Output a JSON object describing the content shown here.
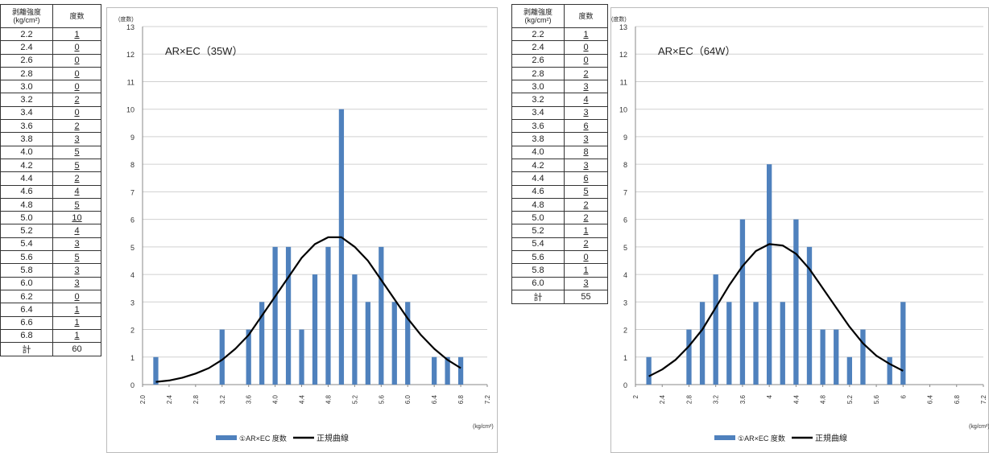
{
  "tables": [
    {
      "header_strength": "剥離強度\n(kg/cm²)",
      "header_freq": "度数",
      "rows": [
        [
          "2.2",
          "1"
        ],
        [
          "2.4",
          "0"
        ],
        [
          "2.6",
          "0"
        ],
        [
          "2.8",
          "0"
        ],
        [
          "3.0",
          "0"
        ],
        [
          "3.2",
          "2"
        ],
        [
          "3.4",
          "0"
        ],
        [
          "3.6",
          "2"
        ],
        [
          "3.8",
          "3"
        ],
        [
          "4.0",
          "5"
        ],
        [
          "4.2",
          "5"
        ],
        [
          "4.4",
          "2"
        ],
        [
          "4.6",
          "4"
        ],
        [
          "4.8",
          "5"
        ],
        [
          "5.0",
          "10"
        ],
        [
          "5.2",
          "4"
        ],
        [
          "5.4",
          "3"
        ],
        [
          "5.6",
          "5"
        ],
        [
          "5.8",
          "3"
        ],
        [
          "6.0",
          "3"
        ],
        [
          "6.2",
          "0"
        ],
        [
          "6.4",
          "1"
        ],
        [
          "6.6",
          "1"
        ],
        [
          "6.8",
          "1"
        ]
      ],
      "total_label": "計",
      "total_value": "60"
    },
    {
      "header_strength": "剥離強度\n(kg/cm²)",
      "header_freq": "度数",
      "rows": [
        [
          "2.2",
          "1"
        ],
        [
          "2.4",
          "0"
        ],
        [
          "2.6",
          "0"
        ],
        [
          "2.8",
          "2"
        ],
        [
          "3.0",
          "3"
        ],
        [
          "3.2",
          "4"
        ],
        [
          "3.4",
          "3"
        ],
        [
          "3.6",
          "6"
        ],
        [
          "3.8",
          "3"
        ],
        [
          "4.0",
          "8"
        ],
        [
          "4.2",
          "3"
        ],
        [
          "4.4",
          "6"
        ],
        [
          "4.6",
          "5"
        ],
        [
          "4.8",
          "2"
        ],
        [
          "5.0",
          "2"
        ],
        [
          "5.2",
          "1"
        ],
        [
          "5.4",
          "2"
        ],
        [
          "5.6",
          "0"
        ],
        [
          "5.8",
          "1"
        ],
        [
          "6.0",
          "3"
        ]
      ],
      "total_label": "計",
      "total_value": "55"
    }
  ],
  "chart_data": [
    {
      "type": "bar",
      "title": "AR×EC（35W）",
      "ylabel": "(度数)",
      "xlabel": "(kg/cm²)",
      "ylim": [
        0,
        13
      ],
      "yticks": [
        "0",
        "1",
        "2",
        "3",
        "4",
        "5",
        "6",
        "7",
        "8",
        "9",
        "10",
        "11",
        "12",
        "13"
      ],
      "x_tick_labels": [
        "2.0",
        "2.4",
        "2.8",
        "3.2",
        "3.6",
        "4.0",
        "4.4",
        "4.8",
        "5.2",
        "5.6",
        "6.0",
        "6.4",
        "6.8",
        "7.2"
      ],
      "categories": [
        "2.2",
        "2.4",
        "2.6",
        "2.8",
        "3.0",
        "3.2",
        "3.4",
        "3.6",
        "3.8",
        "4.0",
        "4.2",
        "4.4",
        "4.6",
        "4.8",
        "5.0",
        "5.2",
        "5.4",
        "5.6",
        "5.8",
        "6.0",
        "6.2",
        "6.4",
        "6.6",
        "6.8"
      ],
      "series": [
        {
          "name": "①AR×EC 度数",
          "type": "bar",
          "color": "#4f81bd",
          "values": [
            1,
            0,
            0,
            0,
            0,
            2,
            0,
            2,
            3,
            5,
            5,
            2,
            4,
            5,
            10,
            4,
            3,
            5,
            3,
            3,
            0,
            1,
            1,
            1
          ]
        },
        {
          "name": "正規曲線",
          "type": "line",
          "color": "#000000",
          "x": [
            2.2,
            2.4,
            2.6,
            2.8,
            3.0,
            3.2,
            3.4,
            3.6,
            3.8,
            4.0,
            4.2,
            4.4,
            4.6,
            4.8,
            5.0,
            5.2,
            5.4,
            5.6,
            5.8,
            6.0,
            6.2,
            6.4,
            6.6,
            6.8
          ],
          "values": [
            0.1,
            0.15,
            0.25,
            0.4,
            0.6,
            0.9,
            1.3,
            1.8,
            2.5,
            3.2,
            3.9,
            4.6,
            5.1,
            5.35,
            5.35,
            5.0,
            4.5,
            3.8,
            3.1,
            2.4,
            1.8,
            1.3,
            0.9,
            0.6
          ]
        }
      ],
      "grid": true,
      "legend": "bottom"
    },
    {
      "type": "bar",
      "title": "AR×EC（64W）",
      "ylabel": "(度数)",
      "xlabel": "(kg/cm²)",
      "ylim": [
        0,
        13
      ],
      "yticks": [
        "0",
        "1",
        "2",
        "3",
        "4",
        "5",
        "6",
        "7",
        "8",
        "9",
        "10",
        "11",
        "12",
        "13"
      ],
      "x_tick_labels": [
        "2",
        "2.4",
        "2.8",
        "3.2",
        "3.6",
        "4",
        "4.4",
        "4.8",
        "5.2",
        "5.6",
        "6",
        "6.4",
        "6.8",
        "7.2"
      ],
      "categories": [
        "2.2",
        "2.4",
        "2.6",
        "2.8",
        "3.0",
        "3.2",
        "3.4",
        "3.6",
        "3.8",
        "4.0",
        "4.2",
        "4.4",
        "4.6",
        "4.8",
        "5.0",
        "5.2",
        "5.4",
        "5.6",
        "5.8",
        "6.0"
      ],
      "series": [
        {
          "name": "①AR×EC 度数",
          "type": "bar",
          "color": "#4f81bd",
          "values": [
            1,
            0,
            0,
            2,
            3,
            4,
            3,
            6,
            3,
            8,
            3,
            6,
            5,
            2,
            2,
            1,
            2,
            0,
            1,
            3
          ]
        },
        {
          "name": "正規曲線",
          "type": "line",
          "color": "#000000",
          "x": [
            2.2,
            2.4,
            2.6,
            2.8,
            3.0,
            3.2,
            3.4,
            3.6,
            3.8,
            4.0,
            4.2,
            4.4,
            4.6,
            4.8,
            5.0,
            5.2,
            5.4,
            5.6,
            5.8,
            6.0
          ],
          "values": [
            0.3,
            0.55,
            0.9,
            1.4,
            2.0,
            2.8,
            3.6,
            4.3,
            4.85,
            5.1,
            5.05,
            4.75,
            4.2,
            3.5,
            2.8,
            2.1,
            1.5,
            1.05,
            0.75,
            0.5
          ]
        }
      ],
      "grid": true,
      "legend": "bottom"
    }
  ]
}
